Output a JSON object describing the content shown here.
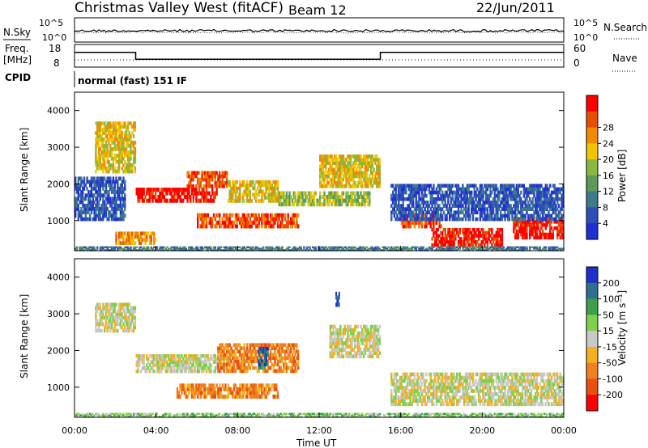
{
  "header": {
    "title": "Christmas Valley West (fitACF)",
    "beam": "Beam 12",
    "date": "22/Jun/2011"
  },
  "labels": {
    "nsky": "N.Sky",
    "nsearch": "N.Search",
    "freq_line1": "Freq.",
    "freq_line2": "[MHz]",
    "nave": "Nave",
    "cpid": "CPID",
    "cpid_value": "normal (fast) 151 IF",
    "power_colorbar": "Power [dB]",
    "velocity_colorbar": "Velocity [m s⁻¹]"
  },
  "chart_data": [
    {
      "type": "line",
      "name": "noise",
      "yticks_left": [
        "10^5",
        "10^0"
      ],
      "yticks_right": [
        "10^5",
        "10^0"
      ]
    },
    {
      "type": "line",
      "name": "frequency",
      "yticks_left": [
        "18",
        "8"
      ],
      "yticks_right": [
        "60",
        "0"
      ],
      "freq_segments": [
        {
          "x": [
            0.0,
            3.0
          ],
          "y": 14.5
        },
        {
          "x": [
            3.0,
            15.0
          ],
          "y": 11.5
        },
        {
          "x": [
            15.0,
            24.0
          ],
          "y": 14.5
        }
      ]
    },
    {
      "type": "heatmap",
      "name": "power",
      "ylabel": "Slant Range [km]",
      "yticks": [
        "1000",
        "2000",
        "3000",
        "4000"
      ],
      "ylim": [
        180,
        4500
      ],
      "xlim": [
        0,
        24
      ],
      "colorbar": {
        "ticks": [
          "4",
          "8",
          "12",
          "16",
          "20",
          "24",
          "28"
        ],
        "colors": [
          "#1f2fd6",
          "#2e4fb7",
          "#3d7b8c",
          "#5b9a58",
          "#8ab840",
          "#f2c400",
          "#f28a00",
          "#e84e00",
          "#ff0000"
        ]
      },
      "blobs": [
        {
          "t0": 3.0,
          "t1": 7.0,
          "r0": 1500,
          "r1": 1900,
          "level": 8
        },
        {
          "t0": 5.5,
          "t1": 7.5,
          "r0": 1900,
          "r1": 2350,
          "level": 7
        },
        {
          "t0": 7.5,
          "t1": 10.0,
          "r0": 1500,
          "r1": 2100,
          "level": 5
        },
        {
          "t0": 6.0,
          "t1": 11.0,
          "r0": 800,
          "r1": 1200,
          "level": 7
        },
        {
          "t0": 10.0,
          "t1": 14.5,
          "r0": 1400,
          "r1": 1800,
          "level": 4
        },
        {
          "t0": 12.0,
          "t1": 15.0,
          "r0": 1900,
          "r1": 2800,
          "level": 5
        },
        {
          "t0": 1.0,
          "t1": 3.0,
          "r0": 2300,
          "r1": 3700,
          "level": 5
        },
        {
          "t0": 2.0,
          "t1": 4.0,
          "r0": 350,
          "r1": 700,
          "level": 6
        },
        {
          "t0": 0.0,
          "t1": 2.5,
          "r0": 1000,
          "r1": 2200,
          "level": 1
        },
        {
          "t0": 16.0,
          "t1": 18.0,
          "r0": 800,
          "r1": 1200,
          "level": 7
        },
        {
          "t0": 17.5,
          "t1": 21.0,
          "r0": 300,
          "r1": 800,
          "level": 8
        },
        {
          "t0": 21.5,
          "t1": 24.0,
          "r0": 500,
          "r1": 1100,
          "level": 8
        },
        {
          "t0": 15.5,
          "t1": 24.0,
          "r0": 1000,
          "r1": 2000,
          "level": 1
        },
        {
          "t0": 0.0,
          "t1": 24.0,
          "r0": 180,
          "r1": 300,
          "level": 2
        }
      ]
    },
    {
      "type": "heatmap",
      "name": "velocity",
      "ylabel": "Slant Range [km]",
      "yticks": [
        "1000",
        "2000",
        "3000",
        "4000"
      ],
      "ylim": [
        180,
        4500
      ],
      "xlim": [
        0,
        24
      ],
      "colorbar": {
        "ticks": [
          "200",
          "100",
          "50",
          "15",
          "-15",
          "-50",
          "-100",
          "-200"
        ],
        "colors": [
          "#2030c8",
          "#2f6f8f",
          "#3aa04a",
          "#7fd04a",
          "#c8c8c8",
          "#f5b020",
          "#f08020",
          "#e85010",
          "#ff0000"
        ]
      },
      "blobs": [
        {
          "t0": 3.0,
          "t1": 7.5,
          "r0": 1400,
          "r1": 1900,
          "level": 4
        },
        {
          "t0": 7.0,
          "t1": 11.0,
          "r0": 1400,
          "r1": 2200,
          "level": 6
        },
        {
          "t0": 5.0,
          "t1": 10.0,
          "r0": 700,
          "r1": 1100,
          "level": 6
        },
        {
          "t0": 9.0,
          "t1": 9.5,
          "r0": 1500,
          "r1": 2100,
          "level": 1
        },
        {
          "t0": 1.0,
          "t1": 3.0,
          "r0": 2500,
          "r1": 3300,
          "level": 4
        },
        {
          "t0": 12.5,
          "t1": 15.0,
          "r0": 1800,
          "r1": 2700,
          "level": 4
        },
        {
          "t0": 12.8,
          "t1": 13.0,
          "r0": 3200,
          "r1": 3600,
          "level": 0
        },
        {
          "t0": 15.5,
          "t1": 24.0,
          "r0": 500,
          "r1": 1400,
          "level": 4
        },
        {
          "t0": 0.0,
          "t1": 24.0,
          "r0": 180,
          "r1": 300,
          "level": 3
        }
      ]
    }
  ],
  "xaxis": {
    "ticks": [
      "00:00",
      "04:00",
      "08:00",
      "12:00",
      "16:00",
      "20:00",
      "00:00"
    ],
    "label": "Time UT"
  }
}
